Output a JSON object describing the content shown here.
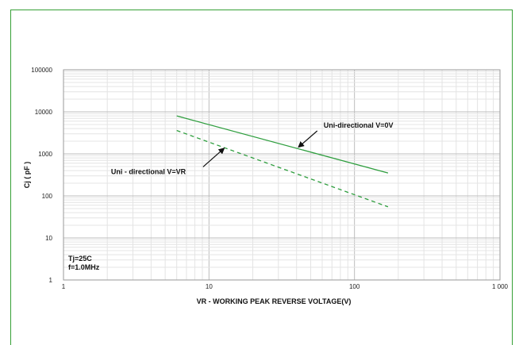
{
  "chart_data": {
    "type": "line",
    "title": "",
    "xlabel": "VR - WORKING PEAK REVERSE VOLTAGE(V)",
    "ylabel": "Cj ( pF )",
    "x_scale": "log",
    "y_scale": "log",
    "xlim": [
      1,
      1000
    ],
    "ylim": [
      1,
      100000
    ],
    "x_tick_labels": [
      "1",
      "10",
      "100",
      "1 000"
    ],
    "y_tick_labels": [
      "1",
      "10",
      "100",
      "1000",
      "10000",
      "100000"
    ],
    "grid": true,
    "colors": {
      "series": "#2e9e3e",
      "frame": "#35a035"
    },
    "series": [
      {
        "name": "Uni-directional V=0V",
        "style": "solid",
        "x": [
          6,
          170
        ],
        "y": [
          8000,
          350
        ]
      },
      {
        "name": "Uni - directional V=VR",
        "style": "dashed",
        "x": [
          6,
          170
        ],
        "y": [
          3600,
          55
        ]
      }
    ],
    "annotations": {
      "conditions_line1": "Tj=25C",
      "conditions_line2": "f=1.0MHz"
    }
  }
}
